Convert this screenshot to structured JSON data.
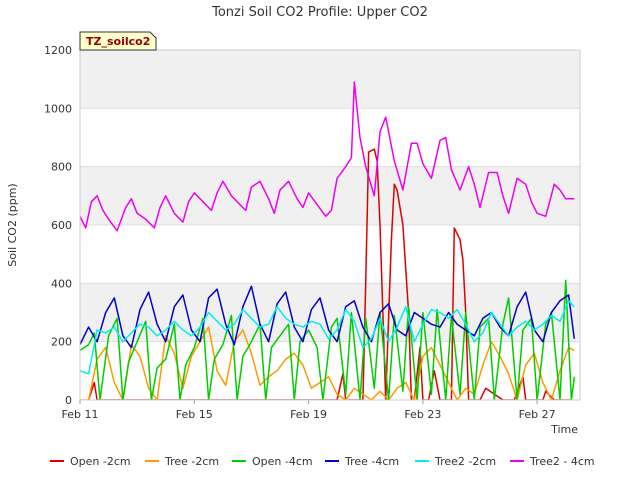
{
  "chart_data": {
    "type": "line",
    "title": "Tonzi Soil CO2 Profile: Upper CO2",
    "xlabel": "Time",
    "ylabel": "Soil CO2 (ppm)",
    "ylim": [
      0,
      1200
    ],
    "xlim_days": [
      0,
      17.5
    ],
    "y_ticks": [
      0,
      200,
      400,
      600,
      800,
      1000,
      1200
    ],
    "x_ticks": [
      {
        "day": 0,
        "label": "Feb 11"
      },
      {
        "day": 4,
        "label": "Feb 15"
      },
      {
        "day": 8,
        "label": "Feb 19"
      },
      {
        "day": 12,
        "label": "Feb 23"
      },
      {
        "day": 16,
        "label": "Feb 27"
      }
    ],
    "grid": "alternating horizontal bands",
    "legend_position": "bottom",
    "station_label": "TZ_soilco2",
    "series": [
      {
        "name": "Open -2cm",
        "color": "#dd0000",
        "x": [
          0.3,
          0.5,
          0.6,
          9.0,
          9.2,
          9.3,
          9.9,
          10.0,
          10.1,
          10.3,
          10.4,
          10.5,
          10.7,
          10.9,
          11.0,
          11.1,
          11.3,
          11.5,
          11.6,
          11.7,
          11.9,
          12.0,
          12.2,
          12.4,
          12.6,
          12.8,
          13.0,
          13.1,
          13.3,
          13.4,
          13.5,
          13.6,
          13.8,
          14.0,
          14.2,
          14.8,
          15.2,
          15.5,
          15.6,
          16.2,
          16.3,
          16.6,
          17.2
        ],
        "y": [
          0,
          60,
          0,
          0,
          90,
          0,
          0,
          400,
          850,
          860,
          820,
          600,
          0,
          550,
          740,
          720,
          600,
          300,
          0,
          0,
          180,
          0,
          0,
          100,
          0,
          0,
          0,
          590,
          550,
          480,
          300,
          0,
          0,
          0,
          40,
          0,
          0,
          80,
          0,
          0,
          30,
          0,
          0
        ]
      },
      {
        "name": "Tree -2cm",
        "color": "#ff9900",
        "x": [
          0.0,
          0.3,
          0.6,
          0.9,
          1.2,
          1.5,
          1.8,
          2.1,
          2.4,
          2.7,
          3.0,
          3.3,
          3.6,
          3.9,
          4.2,
          4.5,
          4.8,
          5.1,
          5.4,
          5.7,
          6.0,
          6.3,
          6.6,
          6.9,
          7.2,
          7.5,
          7.8,
          8.1,
          8.4,
          8.7,
          9.0,
          9.3,
          9.6,
          9.9,
          10.2,
          10.5,
          10.8,
          11.1,
          11.4,
          11.7,
          12.0,
          12.3,
          12.6,
          12.9,
          13.2,
          13.5,
          13.8,
          14.1,
          14.4,
          14.7,
          15.0,
          15.3,
          15.6,
          15.9,
          16.2,
          16.5,
          16.8,
          17.1,
          17.3
        ],
        "y": [
          0,
          0,
          140,
          180,
          60,
          0,
          190,
          150,
          40,
          0,
          220,
          160,
          40,
          150,
          200,
          250,
          100,
          50,
          200,
          240,
          160,
          50,
          80,
          100,
          140,
          160,
          120,
          40,
          60,
          80,
          20,
          0,
          40,
          20,
          0,
          30,
          0,
          40,
          60,
          0,
          150,
          180,
          120,
          60,
          0,
          40,
          20,
          120,
          200,
          150,
          90,
          0,
          120,
          160,
          60,
          0,
          100,
          180,
          170
        ]
      },
      {
        "name": "Open -4cm",
        "color": "#00cc00",
        "x": [
          0.0,
          0.3,
          0.5,
          0.7,
          1.0,
          1.3,
          1.5,
          1.7,
          2.0,
          2.3,
          2.5,
          2.7,
          3.0,
          3.3,
          3.5,
          3.7,
          4.0,
          4.3,
          4.5,
          4.7,
          5.0,
          5.3,
          5.5,
          5.7,
          6.0,
          6.3,
          6.5,
          6.7,
          7.0,
          7.3,
          7.5,
          7.7,
          8.0,
          8.3,
          8.5,
          8.8,
          9.0,
          9.3,
          9.5,
          9.8,
          10.0,
          10.3,
          10.5,
          10.8,
          11.0,
          11.3,
          11.5,
          11.8,
          12.0,
          12.3,
          12.5,
          12.8,
          13.0,
          13.3,
          13.5,
          13.8,
          14.0,
          14.3,
          14.5,
          14.8,
          15.0,
          15.3,
          15.5,
          15.8,
          16.0,
          16.3,
          16.5,
          16.8,
          17.0,
          17.2,
          17.3
        ],
        "y": [
          170,
          190,
          230,
          0,
          220,
          280,
          0,
          130,
          200,
          270,
          0,
          110,
          140,
          260,
          0,
          120,
          180,
          280,
          0,
          140,
          190,
          290,
          0,
          150,
          200,
          260,
          0,
          180,
          220,
          260,
          0,
          200,
          240,
          180,
          0,
          250,
          280,
          20,
          300,
          0,
          280,
          40,
          300,
          0,
          290,
          30,
          320,
          0,
          300,
          20,
          310,
          0,
          290,
          20,
          300,
          0,
          250,
          280,
          0,
          260,
          350,
          0,
          240,
          280,
          0,
          260,
          300,
          0,
          410,
          0,
          80
        ]
      },
      {
        "name": "Tree -4cm",
        "color": "#0000cc",
        "x": [
          0.0,
          0.3,
          0.6,
          0.9,
          1.2,
          1.5,
          1.8,
          2.1,
          2.4,
          2.7,
          3.0,
          3.3,
          3.6,
          3.9,
          4.2,
          4.5,
          4.8,
          5.1,
          5.4,
          5.7,
          6.0,
          6.3,
          6.6,
          6.9,
          7.2,
          7.5,
          7.8,
          8.1,
          8.4,
          8.7,
          9.0,
          9.3,
          9.6,
          9.9,
          10.2,
          10.5,
          10.8,
          11.1,
          11.4,
          11.7,
          12.0,
          12.3,
          12.6,
          12.9,
          13.2,
          13.5,
          13.8,
          14.1,
          14.4,
          14.7,
          15.0,
          15.3,
          15.6,
          15.9,
          16.2,
          16.5,
          16.8,
          17.1,
          17.3
        ],
        "y": [
          190,
          250,
          200,
          300,
          350,
          220,
          180,
          310,
          370,
          260,
          200,
          320,
          360,
          240,
          200,
          350,
          380,
          260,
          190,
          320,
          390,
          260,
          200,
          330,
          370,
          250,
          200,
          310,
          350,
          240,
          200,
          320,
          340,
          250,
          200,
          300,
          330,
          240,
          220,
          300,
          280,
          260,
          250,
          300,
          260,
          240,
          220,
          280,
          300,
          250,
          220,
          320,
          370,
          240,
          200,
          300,
          340,
          360,
          210
        ]
      },
      {
        "name": "Tree2 -2cm",
        "color": "#00eeee",
        "x": [
          0.0,
          0.3,
          0.6,
          0.9,
          1.2,
          1.5,
          1.8,
          2.1,
          2.4,
          2.7,
          3.0,
          3.3,
          3.6,
          3.9,
          4.2,
          4.5,
          4.8,
          5.1,
          5.4,
          5.7,
          6.0,
          6.3,
          6.6,
          6.9,
          7.2,
          7.5,
          7.8,
          8.1,
          8.4,
          8.7,
          9.0,
          9.3,
          9.6,
          9.9,
          10.2,
          10.5,
          10.8,
          11.1,
          11.4,
          11.7,
          12.0,
          12.3,
          12.6,
          12.9,
          13.2,
          13.5,
          13.8,
          14.1,
          14.4,
          14.7,
          15.0,
          15.3,
          15.6,
          15.9,
          16.2,
          16.5,
          16.8,
          17.1,
          17.3
        ],
        "y": [
          100,
          90,
          240,
          230,
          250,
          200,
          230,
          260,
          250,
          220,
          240,
          270,
          240,
          220,
          250,
          300,
          270,
          240,
          260,
          310,
          280,
          250,
          260,
          320,
          280,
          260,
          250,
          270,
          260,
          210,
          240,
          310,
          270,
          180,
          210,
          280,
          200,
          250,
          320,
          200,
          260,
          310,
          300,
          280,
          310,
          260,
          200,
          230,
          300,
          260,
          220,
          250,
          270,
          240,
          260,
          290,
          270,
          340,
          320
        ]
      },
      {
        "name": "Tree2 - 4cm",
        "color": "#ee00ee",
        "x": [
          0.0,
          0.2,
          0.4,
          0.6,
          0.8,
          1.0,
          1.3,
          1.6,
          1.8,
          2.0,
          2.3,
          2.6,
          2.8,
          3.0,
          3.3,
          3.6,
          3.8,
          4.0,
          4.3,
          4.6,
          4.8,
          5.0,
          5.3,
          5.6,
          5.8,
          6.0,
          6.3,
          6.6,
          6.8,
          7.0,
          7.3,
          7.6,
          7.8,
          8.0,
          8.3,
          8.6,
          8.8,
          9.0,
          9.3,
          9.5,
          9.6,
          9.8,
          10.0,
          10.3,
          10.5,
          10.7,
          11.0,
          11.3,
          11.6,
          11.8,
          12.0,
          12.3,
          12.6,
          12.8,
          13.0,
          13.3,
          13.6,
          13.8,
          14.0,
          14.3,
          14.6,
          14.8,
          15.0,
          15.3,
          15.6,
          15.8,
          16.0,
          16.3,
          16.6,
          16.8,
          17.0,
          17.3
        ],
        "y": [
          630,
          590,
          680,
          700,
          650,
          620,
          580,
          660,
          690,
          640,
          620,
          590,
          660,
          700,
          640,
          610,
          680,
          710,
          680,
          650,
          710,
          750,
          700,
          670,
          650,
          730,
          750,
          690,
          640,
          720,
          750,
          690,
          660,
          710,
          670,
          630,
          650,
          760,
          800,
          830,
          1090,
          900,
          800,
          700,
          920,
          970,
          820,
          720,
          880,
          880,
          810,
          760,
          890,
          900,
          790,
          720,
          800,
          740,
          660,
          780,
          780,
          700,
          640,
          760,
          740,
          680,
          640,
          630,
          740,
          720,
          690,
          690
        ]
      }
    ]
  }
}
